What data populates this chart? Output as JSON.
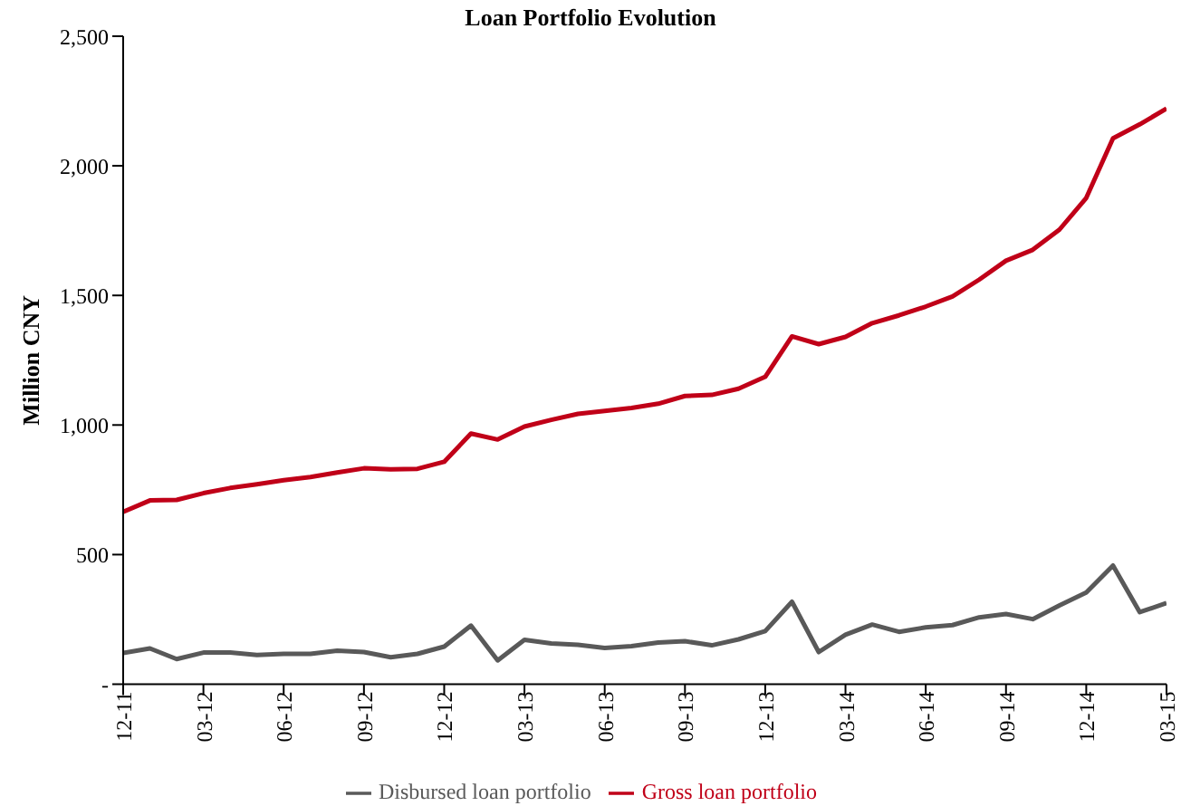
{
  "chart_data": {
    "type": "line",
    "title": "Loan Portfolio Evolution",
    "ylabel": "Million CNY",
    "categories": [
      "12-11",
      null,
      null,
      "03-12",
      null,
      null,
      "06-12",
      null,
      null,
      "09-12",
      null,
      null,
      "12-12",
      null,
      null,
      "03-13",
      null,
      null,
      "06-13",
      null,
      null,
      "09-13",
      null,
      null,
      "12-13",
      null,
      null,
      "03-14",
      null,
      null,
      "06-14",
      null,
      null,
      "09-14",
      null,
      null,
      "12-14",
      null,
      null,
      "03-15"
    ],
    "series": [
      {
        "name": "Gross loan portfolio",
        "color": "#c00018",
        "values": [
          665,
          709,
          711,
          737,
          757,
          771,
          787,
          799,
          817,
          833,
          829,
          831,
          858,
          967,
          944,
          994,
          1020,
          1043,
          1054,
          1066,
          1082,
          1112,
          1116,
          1140,
          1186,
          1342,
          1312,
          1340,
          1393,
          1423,
          1457,
          1496,
          1561,
          1634,
          1676,
          1754,
          1876,
          2106,
          2160,
          2221
        ]
      },
      {
        "name": "Disbursed loan portfolio",
        "color": "#595959",
        "values": [
          120,
          138,
          97,
          122,
          122,
          113,
          117,
          117,
          129,
          124,
          104,
          117,
          145,
          226,
          92,
          171,
          157,
          152,
          140,
          147,
          161,
          166,
          150,
          173,
          205,
          318,
          124,
          191,
          230,
          202,
          219,
          228,
          258,
          271,
          251,
          304,
          354,
          458,
          278,
          313
        ]
      }
    ],
    "ylim": [
      0,
      2500
    ],
    "yticks": [
      {
        "value": 0,
        "label": "-"
      },
      {
        "value": 500,
        "label": "500"
      },
      {
        "value": 1000,
        "label": "1,000"
      },
      {
        "value": 1500,
        "label": "1,500"
      },
      {
        "value": 2000,
        "label": "2,000"
      },
      {
        "value": 2500,
        "label": "2,500"
      }
    ],
    "grid": false,
    "legend": "bottom",
    "marker": "none",
    "line_style": "solid"
  }
}
